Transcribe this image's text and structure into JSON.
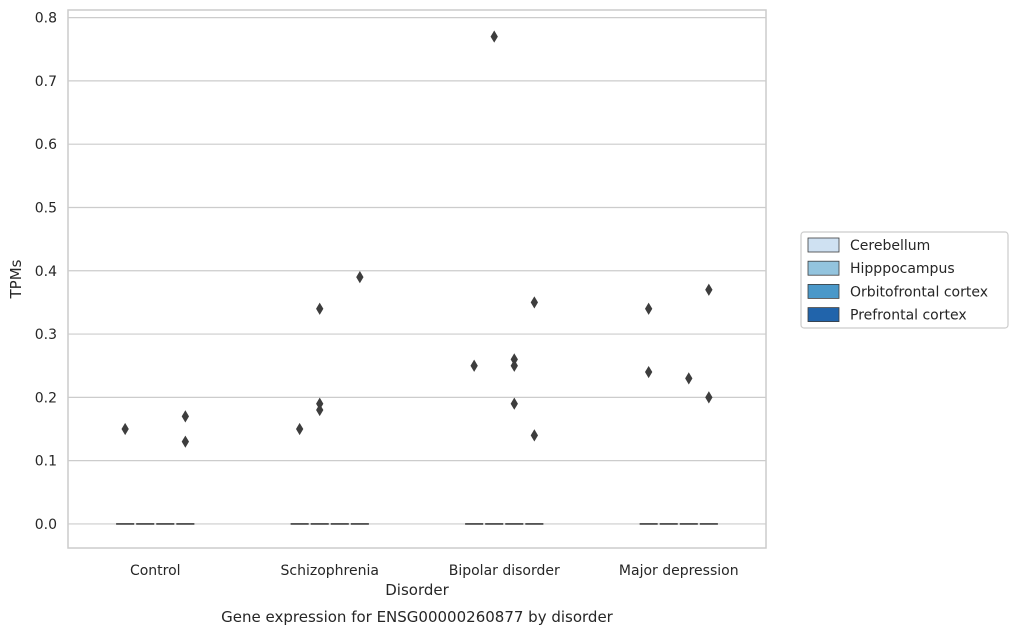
{
  "chart_data": {
    "type": "box",
    "title": "",
    "caption": "Gene expression for ENSG00000260877 by disorder",
    "xlabel": "Disorder",
    "ylabel": "TPMs",
    "ylim": [
      -0.038,
      0.812
    ],
    "yticks": [
      0.0,
      0.1,
      0.2,
      0.3,
      0.4,
      0.5,
      0.6,
      0.7,
      0.8
    ],
    "grid": "horizontal",
    "legend_position": "right",
    "categories": [
      "Control",
      "Schizophrenia",
      "Bipolar disorder",
      "Major depression"
    ],
    "series": [
      {
        "name": "Cerebellum",
        "color": "#cfe1f2",
        "medians": [
          0,
          0,
          0,
          0
        ],
        "outliers": [
          [
            0.15
          ],
          [
            0.15
          ],
          [
            0.25
          ],
          [
            0.34,
            0.24
          ]
        ]
      },
      {
        "name": "Hipppocampus",
        "color": "#93c4de",
        "medians": [
          0,
          0,
          0,
          0
        ],
        "outliers": [
          [],
          [
            0.34,
            0.19,
            0.18
          ],
          [
            0.77
          ],
          []
        ]
      },
      {
        "name": "Orbitofrontal cortex",
        "color": "#4a98c9",
        "medians": [
          0,
          0,
          0,
          0
        ],
        "outliers": [
          [],
          [],
          [
            0.26,
            0.25,
            0.19
          ],
          [
            0.23
          ]
        ]
      },
      {
        "name": "Prefrontal cortex",
        "color": "#2164ab",
        "medians": [
          0,
          0,
          0,
          0
        ],
        "outliers": [
          [
            0.17,
            0.13
          ],
          [
            0.39
          ],
          [
            0.35,
            0.14
          ],
          [
            0.37,
            0.2
          ]
        ]
      }
    ]
  }
}
